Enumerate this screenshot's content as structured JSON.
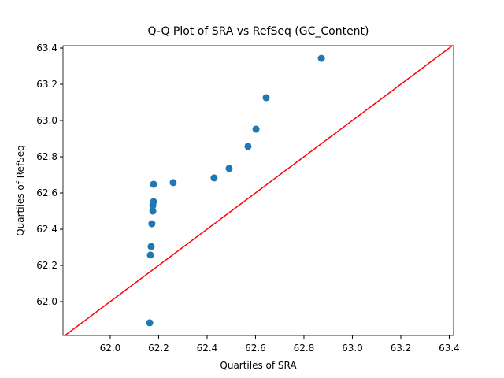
{
  "chart_data": {
    "type": "scatter",
    "title": "Q-Q Plot of SRA vs RefSeq (GC_Content)",
    "xlabel": "Quartiles of SRA",
    "ylabel": "Quartiles of RefSeq",
    "xlim": [
      61.805,
      63.418
    ],
    "ylim": [
      61.813,
      63.413
    ],
    "xticks": [
      {
        "value": 62.0,
        "label": "62.0"
      },
      {
        "value": 62.2,
        "label": "62.2"
      },
      {
        "value": 62.4,
        "label": "62.4"
      },
      {
        "value": 62.6,
        "label": "62.6"
      },
      {
        "value": 62.8,
        "label": "62.8"
      },
      {
        "value": 63.0,
        "label": "63.0"
      },
      {
        "value": 63.2,
        "label": "63.2"
      },
      {
        "value": 63.4,
        "label": "63.4"
      }
    ],
    "yticks": [
      {
        "value": 62.0,
        "label": "62.0"
      },
      {
        "value": 62.2,
        "label": "62.2"
      },
      {
        "value": 62.4,
        "label": "62.4"
      },
      {
        "value": 62.6,
        "label": "62.6"
      },
      {
        "value": 62.8,
        "label": "62.8"
      },
      {
        "value": 63.0,
        "label": "63.0"
      },
      {
        "value": 63.2,
        "label": "63.2"
      },
      {
        "value": 63.4,
        "label": "63.4"
      }
    ],
    "color": "#1f77b4",
    "reference_line_color": "#ff0000",
    "x": [
      62.163,
      62.166,
      62.169,
      62.172,
      62.176,
      62.176,
      62.179,
      62.179,
      62.26,
      62.429,
      62.491,
      62.569,
      62.602,
      62.644,
      62.872
    ],
    "values": [
      61.883,
      62.257,
      62.304,
      62.43,
      62.5,
      62.53,
      62.552,
      62.648,
      62.657,
      62.683,
      62.735,
      62.857,
      62.952,
      63.126,
      63.343
    ]
  }
}
